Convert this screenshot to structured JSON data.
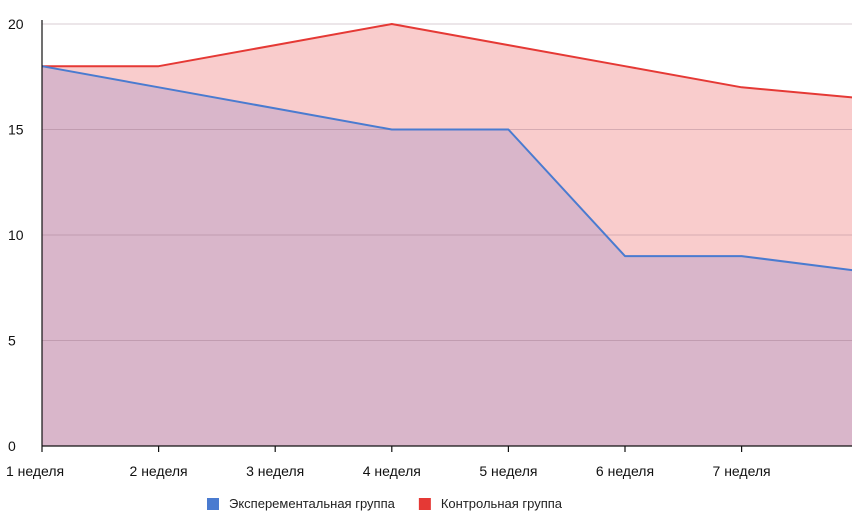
{
  "chart_data": {
    "type": "area",
    "categories": [
      "1 неделя",
      "2 неделя",
      "3 неделя",
      "4 неделя",
      "5 неделя",
      "6 неделя",
      "7 неделя",
      ""
    ],
    "ylim": [
      0,
      20
    ],
    "yticks": [
      0,
      5,
      10,
      15,
      20
    ],
    "grid": true,
    "legend_position": "bottom",
    "series": [
      {
        "name": "Контрольная группа",
        "color": "#e53935",
        "fill": "#f9cccc",
        "values": [
          18,
          18,
          19,
          20,
          19,
          18,
          17,
          16.5
        ]
      },
      {
        "name": "Эксперементальная группа",
        "color": "#4a7bd0",
        "fill": "#d9b6ca",
        "values": [
          18,
          17,
          16,
          15,
          15,
          9,
          9,
          8.3
        ]
      }
    ],
    "legend": [
      {
        "label": "Эксперементальная группа",
        "color": "#4a7bd0"
      },
      {
        "label": "Контрольная группа",
        "color": "#e53935"
      }
    ]
  }
}
